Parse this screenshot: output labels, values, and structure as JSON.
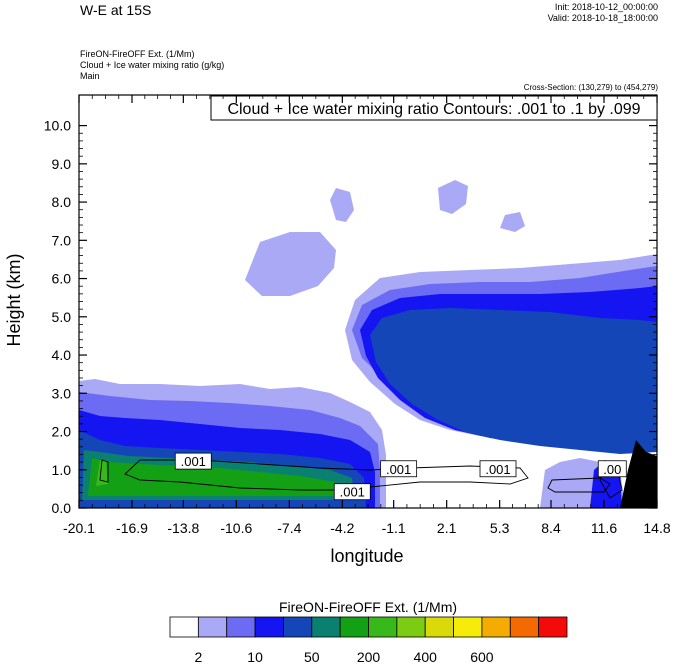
{
  "header": {
    "title": "W-E at 15S",
    "init": "Init: 2018-10-12_00:00:00",
    "valid": "Valid: 2018-10-18_18:00:00",
    "line1": "FireON-FireOFF Ext.   (1/Mm)",
    "line2": "Cloud + Ice water mixing ratio   (g/kg)",
    "line3": "Main",
    "cross_section": "Cross-Section: (130,279) to (454,279)"
  },
  "chart_data": {
    "type": "heatmap",
    "title": "Cloud + Ice water mixing ratio Contours: .001 to .1 by .099",
    "xlabel": "longitude",
    "ylabel": "Height (km)",
    "xlim": [
      -20.1,
      14.8
    ],
    "ylim": [
      0,
      10.8
    ],
    "x_ticks": [
      "-20.1",
      "-16.9",
      "-13.8",
      "-10.6",
      "-7.4",
      "-4.2",
      "-1.1",
      "2.1",
      "5.3",
      "8.4",
      "11.6",
      "14.8"
    ],
    "y_ticks": [
      "0.0",
      "1.0",
      "2.0",
      "3.0",
      "4.0",
      "5.0",
      "6.0",
      "7.0",
      "8.0",
      "9.0",
      "10.0"
    ],
    "contour_labels": [
      {
        "text": ".001",
        "x": -13.2,
        "y": 1.2
      },
      {
        "text": ".001",
        "x": -3.6,
        "y": 0.4
      },
      {
        "text": ".001",
        "x": -0.8,
        "y": 1.0
      },
      {
        "text": ".001",
        "x": 5.2,
        "y": 1.0
      },
      {
        "text": ".00",
        "x": 12.1,
        "y": 1.0
      }
    ],
    "colorbar": {
      "title": "FireON-FireOFF Ext.  (1/Mm)",
      "labels": [
        "2",
        "10",
        "50",
        "200",
        "400",
        "600"
      ],
      "colors": [
        "#ffffff",
        "#a9a9f5",
        "#6b6bf4",
        "#1515f2",
        "#1546b8",
        "#0a8070",
        "#14a014",
        "#38b81a",
        "#7ccc14",
        "#dada0a",
        "#f5ec0a",
        "#f5ac00",
        "#f56a00",
        "#f50a0a"
      ]
    }
  }
}
